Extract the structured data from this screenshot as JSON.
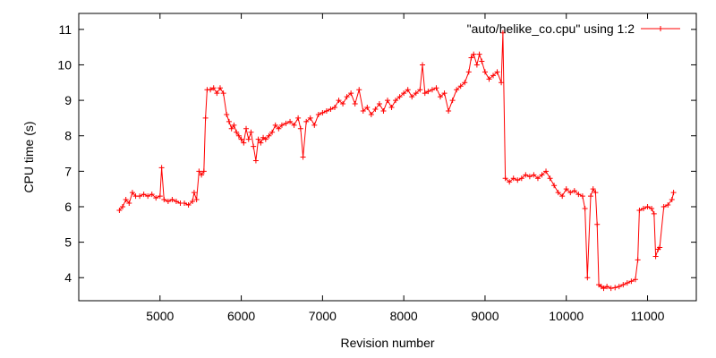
{
  "chart_data": {
    "type": "line",
    "xlabel": "Revision number",
    "ylabel": "CPU time (s)",
    "xlim": [
      4000,
      11600
    ],
    "ylim": [
      3.35,
      11.45
    ],
    "x_ticks": [
      5000,
      6000,
      7000,
      8000,
      9000,
      10000,
      11000
    ],
    "y_ticks": [
      4,
      5,
      6,
      7,
      8,
      9,
      10,
      11
    ],
    "grid": false,
    "legend_position": "top-right",
    "series": [
      {
        "name": "\"auto/helike_co.cpu\" using 1:2",
        "color": "#ff0000",
        "marker": "plus",
        "x": [
          4500,
          4540,
          4580,
          4620,
          4660,
          4700,
          4750,
          4800,
          4850,
          4900,
          4950,
          5000,
          5020,
          5050,
          5100,
          5150,
          5200,
          5250,
          5300,
          5350,
          5400,
          5420,
          5450,
          5480,
          5510,
          5540,
          5560,
          5580,
          5620,
          5660,
          5700,
          5740,
          5780,
          5820,
          5850,
          5880,
          5910,
          5940,
          5970,
          6000,
          6030,
          6060,
          6090,
          6120,
          6150,
          6180,
          6210,
          6240,
          6270,
          6300,
          6340,
          6380,
          6420,
          6460,
          6500,
          6550,
          6600,
          6650,
          6700,
          6730,
          6760,
          6800,
          6850,
          6900,
          6950,
          7000,
          7050,
          7100,
          7150,
          7200,
          7250,
          7300,
          7350,
          7400,
          7450,
          7500,
          7550,
          7600,
          7650,
          7700,
          7750,
          7800,
          7850,
          7900,
          7950,
          8000,
          8050,
          8100,
          8150,
          8200,
          8230,
          8260,
          8300,
          8350,
          8400,
          8450,
          8500,
          8550,
          8600,
          8650,
          8700,
          8750,
          8800,
          8830,
          8860,
          8900,
          8930,
          8960,
          9000,
          9050,
          9100,
          9150,
          9200,
          9220,
          9250,
          9300,
          9350,
          9400,
          9450,
          9500,
          9550,
          9600,
          9650,
          9700,
          9750,
          9800,
          9850,
          9900,
          9950,
          10000,
          10050,
          10100,
          10150,
          10200,
          10230,
          10260,
          10300,
          10330,
          10360,
          10380,
          10400,
          10430,
          10460,
          10500,
          10550,
          10600,
          10650,
          10700,
          10750,
          10800,
          10850,
          10880,
          10900,
          10950,
          11000,
          11050,
          11080,
          11100,
          11130,
          11150,
          11200,
          11250,
          11300,
          11320
        ],
        "y": [
          5.9,
          6.0,
          6.2,
          6.1,
          6.4,
          6.3,
          6.3,
          6.35,
          6.3,
          6.35,
          6.25,
          6.3,
          7.1,
          6.2,
          6.15,
          6.2,
          6.15,
          6.1,
          6.1,
          6.05,
          6.15,
          6.4,
          6.2,
          7.0,
          6.9,
          7.0,
          8.5,
          9.3,
          9.3,
          9.35,
          9.2,
          9.35,
          9.2,
          8.6,
          8.4,
          8.2,
          8.3,
          8.1,
          8.0,
          7.9,
          7.8,
          8.2,
          7.9,
          8.1,
          7.7,
          7.3,
          7.9,
          7.8,
          7.95,
          7.9,
          8.0,
          8.1,
          8.3,
          8.2,
          8.3,
          8.35,
          8.4,
          8.3,
          8.5,
          8.2,
          7.4,
          8.4,
          8.5,
          8.3,
          8.6,
          8.65,
          8.7,
          8.75,
          8.8,
          9.0,
          8.9,
          9.1,
          9.2,
          8.9,
          9.3,
          8.7,
          8.8,
          8.6,
          8.75,
          8.9,
          8.7,
          9.0,
          8.8,
          9.0,
          9.1,
          9.2,
          9.3,
          9.1,
          9.2,
          9.3,
          10.0,
          9.2,
          9.25,
          9.3,
          9.35,
          9.1,
          9.2,
          8.7,
          9.0,
          9.3,
          9.4,
          9.5,
          9.8,
          10.2,
          10.3,
          10.0,
          10.3,
          10.1,
          9.8,
          9.6,
          9.7,
          9.8,
          9.5,
          10.9,
          6.8,
          6.7,
          6.8,
          6.75,
          6.8,
          6.9,
          6.85,
          6.9,
          6.8,
          6.9,
          7.0,
          6.8,
          6.6,
          6.4,
          6.3,
          6.5,
          6.4,
          6.45,
          6.35,
          6.3,
          5.95,
          4.0,
          6.3,
          6.5,
          6.4,
          5.5,
          3.8,
          3.75,
          3.7,
          3.75,
          3.7,
          3.72,
          3.75,
          3.8,
          3.85,
          3.9,
          3.95,
          4.5,
          5.9,
          5.95,
          6.0,
          5.95,
          5.8,
          4.6,
          4.8,
          4.85,
          6.0,
          6.05,
          6.2,
          6.4
        ]
      }
    ]
  }
}
